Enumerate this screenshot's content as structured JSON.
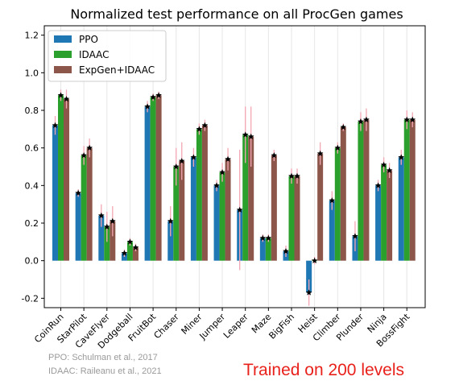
{
  "chart_data": {
    "type": "bar",
    "title": "Normalized test performance on all ProcGen games",
    "xlabel": "",
    "ylabel": "",
    "ylim": [
      -0.25,
      1.25
    ],
    "yticks": [
      "-0.2",
      "0.0",
      "0.2",
      "0.4",
      "0.6",
      "0.8",
      "1.0",
      "1.2"
    ],
    "ytick_values": [
      -0.2,
      0.0,
      0.2,
      0.4,
      0.6,
      0.8,
      1.0,
      1.2
    ],
    "categories": [
      "CoinRun",
      "StarPilot",
      "CaveFlyer",
      "Dodgeball",
      "FruitBot",
      "Chaser",
      "Miner",
      "Jumper",
      "Leaper",
      "Maze",
      "BigFish",
      "Heist",
      "Climber",
      "Plunder",
      "Ninja",
      "BossFight"
    ],
    "legend_position": "top-left",
    "series": [
      {
        "name": "PPO",
        "color": "#1f77b4",
        "values": [
          0.72,
          0.36,
          0.24,
          0.04,
          0.82,
          0.21,
          0.55,
          0.4,
          0.27,
          0.12,
          0.05,
          -0.17,
          0.32,
          0.13,
          0.4,
          0.55
        ],
        "errors": [
          0.05,
          0.02,
          0.06,
          0.02,
          0.03,
          0.08,
          0.05,
          0.03,
          0.32,
          0.02,
          0.03,
          0.07,
          0.05,
          0.08,
          0.03,
          0.04
        ]
      },
      {
        "name": "IDAAC",
        "color": "#2ca02c",
        "values": [
          0.88,
          0.56,
          0.18,
          0.1,
          0.87,
          0.5,
          0.7,
          0.47,
          0.67,
          0.12,
          0.45,
          0.0,
          0.6,
          0.74,
          0.51,
          0.75
        ],
        "errors": [
          0.03,
          0.05,
          0.08,
          0.02,
          0.02,
          0.1,
          0.03,
          0.05,
          0.15,
          0.02,
          0.04,
          0.02,
          0.03,
          0.05,
          0.04,
          0.05
        ]
      },
      {
        "name": "ExpGen+IDAAC",
        "color": "#8c564b",
        "values": [
          0.86,
          0.6,
          0.21,
          0.07,
          0.88,
          0.53,
          0.72,
          0.54,
          0.66,
          0.56,
          0.45,
          0.57,
          0.71,
          0.75,
          0.48,
          0.75
        ],
        "errors": [
          0.05,
          0.05,
          0.08,
          0.02,
          0.02,
          0.1,
          0.03,
          0.06,
          0.16,
          0.03,
          0.04,
          0.06,
          0.02,
          0.06,
          0.04,
          0.04
        ]
      }
    ]
  },
  "footnotes": {
    "ppo_ref": "PPO: Schulman et al., 2017",
    "idaac_ref": "IDAAC: Raileanu et al., 2021"
  },
  "annotation": {
    "trained_text": "Trained on 200 levels"
  },
  "colors": {
    "error_bar": "#f4a6b3",
    "marker": "#000000"
  }
}
